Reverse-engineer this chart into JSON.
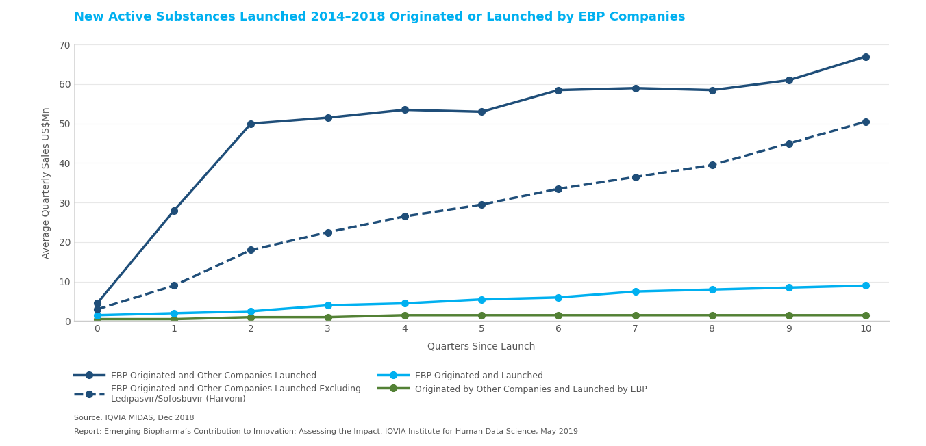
{
  "title": "New Active Substances Launched 2014–2018 Originated or Launched by EBP Companies",
  "title_color": "#00b0f0",
  "xlabel": "Quarters Since Launch",
  "ylabel": "Average Quarterly Sales US$Mn",
  "xlim": [
    -0.3,
    10.3
  ],
  "ylim": [
    0,
    70
  ],
  "yticks": [
    0,
    10,
    20,
    30,
    40,
    50,
    60,
    70
  ],
  "xticks": [
    0,
    1,
    2,
    3,
    4,
    5,
    6,
    7,
    8,
    9,
    10
  ],
  "quarters": [
    0,
    1,
    2,
    3,
    4,
    5,
    6,
    7,
    8,
    9,
    10
  ],
  "series": {
    "ebp_originated_other_launched": {
      "values": [
        4.5,
        28.0,
        50.0,
        51.5,
        53.5,
        53.0,
        58.5,
        59.0,
        58.5,
        61.0,
        67.0
      ],
      "color": "#1f4e79",
      "linestyle": "solid",
      "linewidth": 2.5,
      "marker": "o",
      "markersize": 7,
      "label": "EBP Originated and Other Companies Launched",
      "zorder": 5
    },
    "ebp_originated_excl": {
      "values": [
        3.0,
        9.0,
        18.0,
        22.5,
        26.5,
        29.5,
        33.5,
        36.5,
        39.5,
        45.0,
        50.5
      ],
      "color": "#1f4e79",
      "linestyle": "dashed",
      "linewidth": 2.5,
      "marker": "o",
      "markersize": 7,
      "label": "EBP Originated and Other Companies Launched Excluding\nLedipasvir/Sofosbuvir (Harvoni)",
      "zorder": 4
    },
    "ebp_originated_launched": {
      "values": [
        1.5,
        2.0,
        2.5,
        4.0,
        4.5,
        5.5,
        6.0,
        7.5,
        8.0,
        8.5,
        9.0
      ],
      "color": "#00b0f0",
      "linestyle": "solid",
      "linewidth": 2.5,
      "marker": "o",
      "markersize": 7,
      "label": "EBP Originated and Launched",
      "zorder": 3
    },
    "other_originated_ebp_launched": {
      "values": [
        0.5,
        0.5,
        1.0,
        1.0,
        1.5,
        1.5,
        1.5,
        1.5,
        1.5,
        1.5,
        1.5
      ],
      "color": "#538135",
      "linestyle": "solid",
      "linewidth": 2.5,
      "marker": "o",
      "markersize": 7,
      "label": "Originated by Other Companies and Launched by EBP",
      "zorder": 2
    }
  },
  "legend_order": [
    "ebp_originated_other_launched",
    "ebp_originated_excl",
    "ebp_originated_launched",
    "other_originated_ebp_launched"
  ],
  "footnote1": "Source: IQVIA MIDAS, Dec 2018",
  "footnote2": "Report: Emerging Biopharma’s Contribution to Innovation: Assessing the Impact. IQVIA Institute for Human Data Science, May 2019",
  "background_color": "#ffffff",
  "axis_color": "#cccccc",
  "grid_color": "#e8e8e8",
  "text_color": "#555555",
  "title_fontsize": 13,
  "label_fontsize": 10,
  "legend_fontsize": 9,
  "footnote_fontsize": 8
}
